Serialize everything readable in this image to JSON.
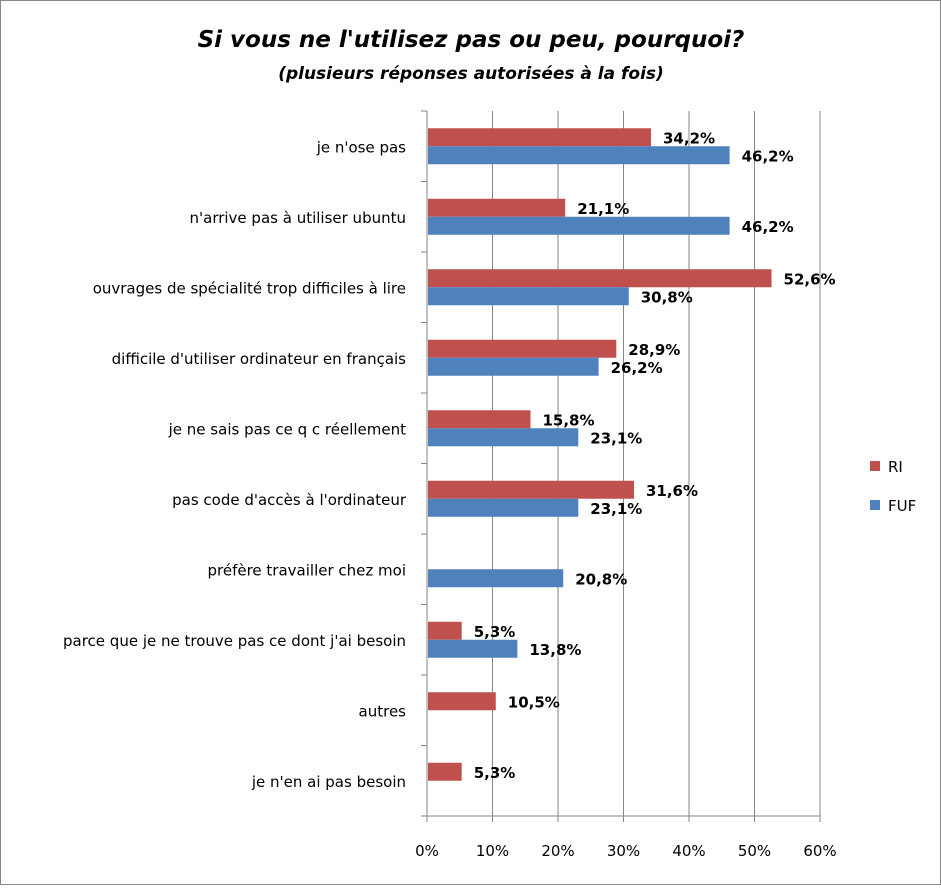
{
  "chart_data": {
    "type": "bar",
    "orientation": "horizontal",
    "title": "Si vous ne l'utilisez pas ou peu, pourquoi?",
    "subtitle": "(plusieurs réponses autorisées à la fois)",
    "categories": [
      "je n'ose pas",
      "n'arrive pas à utiliser ubuntu",
      "ouvrages de spécialité trop difficiles à lire",
      "difficile d'utiliser ordinateur en français",
      "je ne sais pas ce q c réellement",
      "pas code d'accès à l'ordinateur",
      "préfère travailler chez moi",
      "parce que je ne trouve pas ce dont j'ai besoin",
      "autres",
      "je n'en ai pas besoin"
    ],
    "series": [
      {
        "name": "RI",
        "color": "#C0504D",
        "values": [
          34.2,
          21.1,
          52.6,
          28.9,
          15.8,
          31.6,
          null,
          5.3,
          10.5,
          5.3
        ],
        "labels": [
          "34,2%",
          "21,1%",
          "52,6%",
          "28,9%",
          "15,8%",
          "31,6%",
          null,
          "5,3%",
          "10,5%",
          "5,3%"
        ]
      },
      {
        "name": "FUF",
        "color": "#4F81BD",
        "values": [
          46.2,
          46.2,
          30.8,
          26.2,
          23.1,
          23.1,
          20.8,
          13.8,
          null,
          null
        ],
        "labels": [
          "46,2%",
          "46,2%",
          "30,8%",
          "26,2%",
          "23,1%",
          "23,1%",
          "20,8%",
          "13,8%",
          null,
          null
        ]
      }
    ],
    "xlim": [
      0,
      60
    ],
    "xticks": [
      "0%",
      "10%",
      "20%",
      "30%",
      "40%",
      "50%",
      "60%"
    ],
    "grid": true,
    "legend": "right"
  }
}
